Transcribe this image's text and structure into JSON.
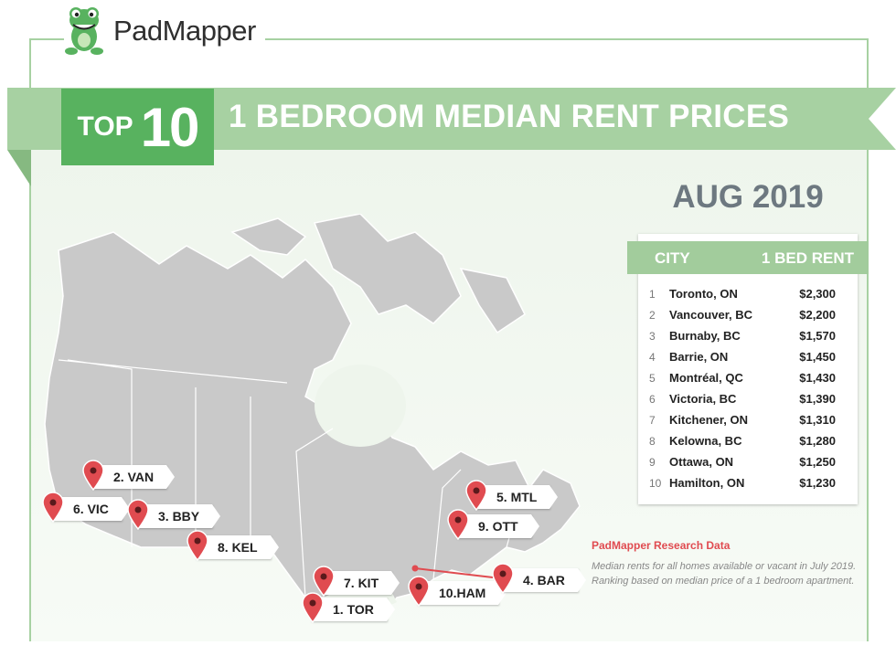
{
  "brand": {
    "name": "PadMapper"
  },
  "banner": {
    "top_word": "TOP",
    "top_number": "10",
    "title": "1 BEDROOM MEDIAN RENT PRICES"
  },
  "period": "AUG 2019",
  "table": {
    "header_city": "CITY",
    "header_rent": "1 BED RENT",
    "rows": [
      {
        "rank": "1",
        "city": "Toronto, ON",
        "rent": "$2,300"
      },
      {
        "rank": "2",
        "city": "Vancouver, BC",
        "rent": "$2,200"
      },
      {
        "rank": "3",
        "city": "Burnaby, BC",
        "rent": "$1,570"
      },
      {
        "rank": "4",
        "city": "Barrie, ON",
        "rent": "$1,450"
      },
      {
        "rank": "5",
        "city": "Montréal, QC",
        "rent": "$1,430"
      },
      {
        "rank": "6",
        "city": "Victoria, BC",
        "rent": "$1,390"
      },
      {
        "rank": "7",
        "city": "Kitchener, ON",
        "rent": "$1,310"
      },
      {
        "rank": "8",
        "city": "Kelowna, BC",
        "rent": "$1,280"
      },
      {
        "rank": "9",
        "city": "Ottawa, ON",
        "rent": "$1,250"
      },
      {
        "rank": "10",
        "city": "Hamilton, ON",
        "rent": "$1,230"
      }
    ]
  },
  "pins": [
    {
      "label": "2. VAN"
    },
    {
      "label": "6. VIC"
    },
    {
      "label": "3. BBY"
    },
    {
      "label": "8. KEL"
    },
    {
      "label": "7. KIT"
    },
    {
      "label": "1. TOR"
    },
    {
      "label": "10.HAM"
    },
    {
      "label": "4. BAR"
    },
    {
      "label": "5. MTL"
    },
    {
      "label": "9. OTT"
    }
  ],
  "note": {
    "title": "PadMapper Research Data",
    "body": "Median rents for all homes available or vacant in July 2019. Ranking based on median price of a 1 bedroom apartment."
  },
  "colors": {
    "brand_green": "#58b25f",
    "ribbon_green": "#a7d1a2",
    "pin_red": "#e04b50",
    "map_gray": "#c9c9c9"
  },
  "icons": {
    "logo": "frog-logo-icon",
    "pin": "map-pin-icon"
  }
}
